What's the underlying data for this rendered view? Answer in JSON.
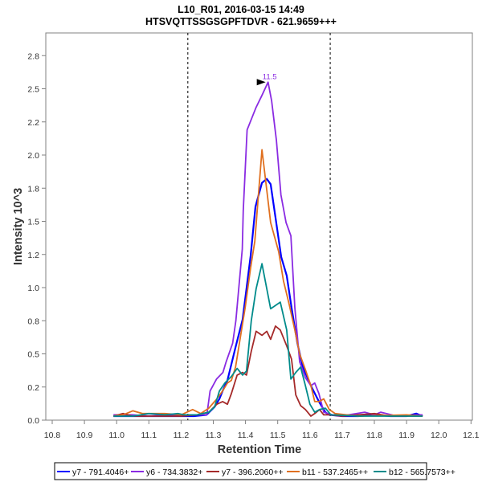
{
  "chart_data": {
    "type": "line",
    "title": "L10_R01, 2016-03-15 14:49",
    "subtitle": "HTSVQTTSSGSGPFTDVR - 621.9659+++",
    "xlabel": "Retention Time",
    "ylabel": "Intensity 10^3",
    "xlim": [
      10.78,
      12.1
    ],
    "ylim": [
      0,
      2.92
    ],
    "x_ticks": [
      10.8,
      10.9,
      11.0,
      11.1,
      11.2,
      11.3,
      11.4,
      11.5,
      11.6,
      11.7,
      11.8,
      11.9,
      12.0,
      12.1
    ],
    "x_tick_labels": [
      "10.8",
      "10.9",
      "11.0",
      "11.1",
      "11.2",
      "11.3",
      "11.4",
      "11.5",
      "11.6",
      "11.7",
      "11.8",
      "11.9",
      "12.0",
      "12.1"
    ],
    "y_ticks": [
      0,
      0.25,
      0.5,
      0.75,
      1.0,
      1.25,
      1.5,
      1.75,
      2.0,
      2.25,
      2.5,
      2.75
    ],
    "y_tick_labels": [
      "0.0",
      "0.2",
      "0.5",
      "0.8",
      "1.0",
      "1.2",
      "1.5",
      "1.8",
      "2.0",
      "2.2",
      "2.5",
      "2.8"
    ],
    "grid": false,
    "legend_position": "bottom",
    "boundaries": [
      11.221,
      11.663
    ],
    "peak_annotation": {
      "label": "11.5",
      "x": 11.47,
      "y": 2.55,
      "color": "#8a2be2"
    },
    "series": [
      {
        "name": "y7 - 791.4046+",
        "color": "#0000ff",
        "width": 2.2,
        "x": [
          10.99,
          11.05,
          11.1,
          11.15,
          11.2,
          11.24,
          11.279,
          11.304,
          11.319,
          11.329,
          11.344,
          11.369,
          11.391,
          11.403,
          11.416,
          11.431,
          11.451,
          11.466,
          11.478,
          11.493,
          11.511,
          11.528,
          11.543,
          11.561,
          11.578,
          11.603,
          11.628,
          11.648,
          11.66,
          11.7,
          11.75,
          11.8,
          11.85,
          11.9,
          11.93,
          11.95
        ],
        "y": [
          0.03,
          0.03,
          0.03,
          0.03,
          0.03,
          0.03,
          0.04,
          0.1,
          0.16,
          0.22,
          0.3,
          0.55,
          0.76,
          0.99,
          1.24,
          1.61,
          1.79,
          1.82,
          1.78,
          1.53,
          1.23,
          1.09,
          0.85,
          0.58,
          0.4,
          0.26,
          0.14,
          0.06,
          0.04,
          0.03,
          0.03,
          0.04,
          0.03,
          0.03,
          0.05,
          0.03
        ]
      },
      {
        "name": "y6 - 734.3832+",
        "color": "#8a2be2",
        "width": 1.8,
        "x": [
          10.99,
          11.05,
          11.1,
          11.15,
          11.2,
          11.26,
          11.28,
          11.29,
          11.31,
          11.33,
          11.34,
          11.36,
          11.37,
          11.39,
          11.393,
          11.405,
          11.433,
          11.451,
          11.47,
          11.481,
          11.496,
          11.51,
          11.526,
          11.541,
          11.553,
          11.568,
          11.586,
          11.603,
          11.615,
          11.628,
          11.643,
          11.67,
          11.72,
          11.77,
          11.8,
          11.82,
          11.87,
          11.95
        ],
        "y": [
          0.04,
          0.04,
          0.03,
          0.04,
          0.04,
          0.04,
          0.04,
          0.22,
          0.31,
          0.36,
          0.44,
          0.58,
          0.75,
          1.29,
          1.58,
          2.19,
          2.36,
          2.45,
          2.55,
          2.41,
          2.11,
          1.7,
          1.49,
          1.39,
          0.85,
          0.44,
          0.32,
          0.26,
          0.28,
          0.2,
          0.06,
          0.04,
          0.04,
          0.06,
          0.04,
          0.06,
          0.03,
          0.04
        ]
      },
      {
        "name": "y7 - 396.2060++",
        "color": "#a52a2a",
        "width": 1.8,
        "x": [
          10.99,
          11.02,
          11.05,
          11.1,
          11.15,
          11.2,
          11.25,
          11.286,
          11.311,
          11.329,
          11.344,
          11.356,
          11.374,
          11.391,
          11.403,
          11.418,
          11.433,
          11.451,
          11.466,
          11.478,
          11.493,
          11.508,
          11.528,
          11.543,
          11.556,
          11.571,
          11.586,
          11.603,
          11.615,
          11.63,
          11.643,
          11.66,
          11.7,
          11.8,
          11.85,
          11.95
        ],
        "y": [
          0.03,
          0.05,
          0.03,
          0.03,
          0.03,
          0.03,
          0.04,
          0.06,
          0.12,
          0.14,
          0.12,
          0.2,
          0.34,
          0.36,
          0.34,
          0.52,
          0.67,
          0.64,
          0.67,
          0.61,
          0.71,
          0.68,
          0.56,
          0.46,
          0.19,
          0.11,
          0.08,
          0.03,
          0.05,
          0.08,
          0.04,
          0.04,
          0.03,
          0.05,
          0.03,
          0.03
        ]
      },
      {
        "name": "b11 - 537.2465++",
        "color": "#e07020",
        "width": 1.8,
        "x": [
          10.99,
          11.02,
          11.05,
          11.08,
          11.15,
          11.2,
          11.236,
          11.261,
          11.286,
          11.311,
          11.329,
          11.344,
          11.356,
          11.369,
          11.381,
          11.399,
          11.416,
          11.429,
          11.451,
          11.478,
          11.503,
          11.518,
          11.536,
          11.553,
          11.568,
          11.586,
          11.603,
          11.615,
          11.628,
          11.643,
          11.66,
          11.678,
          11.75,
          11.9,
          11.95
        ],
        "y": [
          0.03,
          0.04,
          0.07,
          0.05,
          0.05,
          0.04,
          0.08,
          0.05,
          0.09,
          0.16,
          0.22,
          0.28,
          0.3,
          0.4,
          0.58,
          0.85,
          1.15,
          1.35,
          2.04,
          1.49,
          1.27,
          1.05,
          0.87,
          0.68,
          0.5,
          0.38,
          0.26,
          0.14,
          0.14,
          0.16,
          0.08,
          0.05,
          0.03,
          0.04,
          0.03
        ]
      },
      {
        "name": "b12 - 565.7573++",
        "color": "#008b8b",
        "width": 1.8,
        "x": [
          10.99,
          11.05,
          11.1,
          11.15,
          11.19,
          11.21,
          11.25,
          11.286,
          11.304,
          11.319,
          11.336,
          11.356,
          11.374,
          11.391,
          11.403,
          11.418,
          11.433,
          11.451,
          11.478,
          11.508,
          11.528,
          11.541,
          11.556,
          11.571,
          11.586,
          11.6,
          11.615,
          11.63,
          11.648,
          11.665,
          11.75,
          11.85,
          11.95
        ],
        "y": [
          0.03,
          0.03,
          0.05,
          0.04,
          0.05,
          0.04,
          0.04,
          0.06,
          0.1,
          0.22,
          0.28,
          0.33,
          0.39,
          0.34,
          0.37,
          0.75,
          0.99,
          1.18,
          0.84,
          0.89,
          0.68,
          0.31,
          0.36,
          0.4,
          0.26,
          0.12,
          0.06,
          0.08,
          0.09,
          0.04,
          0.03,
          0.03,
          0.03
        ]
      }
    ]
  }
}
